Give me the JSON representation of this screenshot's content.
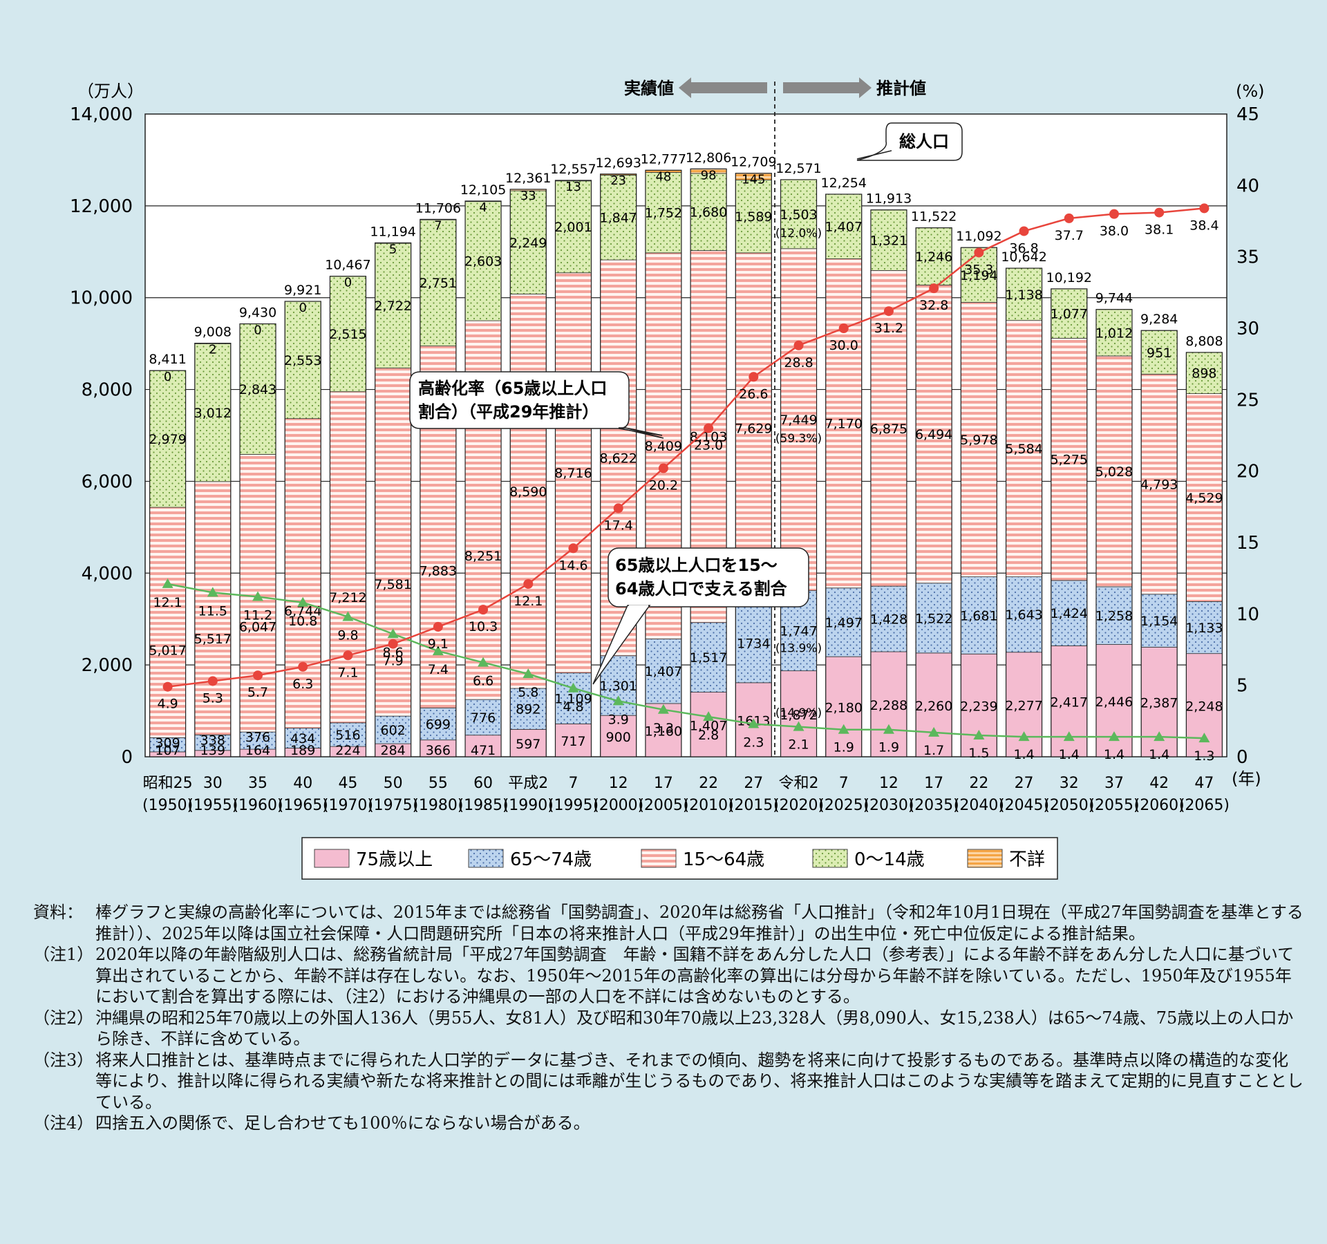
{
  "chart_data": {
    "type": "bar",
    "left_axis_unit": "（万人）",
    "right_axis_unit": "(%)",
    "x_unit": "(年)",
    "actual_label": "実績値",
    "projected_label": "推計値",
    "total_callout": "総人口",
    "aging_callout": "高齢化率（65歳以上人口割合）（平成29年推計）",
    "support_callout": "65歳以上人口を15～64歳人口で支える割合",
    "ylim_left": [
      0,
      14000
    ],
    "yticks_left": [
      "0",
      "2,000",
      "4,000",
      "6,000",
      "8,000",
      "10,000",
      "12,000",
      "14,000"
    ],
    "ylim_right": [
      0,
      45
    ],
    "yticks_right": [
      "0",
      "5",
      "10",
      "15",
      "20",
      "25",
      "30",
      "35",
      "40",
      "45"
    ],
    "categories": [
      "昭和25",
      "30",
      "35",
      "40",
      "45",
      "50",
      "55",
      "60",
      "平成2",
      "7",
      "12",
      "17",
      "22",
      "27",
      "令和2",
      "7",
      "12",
      "17",
      "22",
      "27",
      "32",
      "37",
      "42",
      "47"
    ],
    "years": [
      "(1950)",
      "(1955)",
      "(1960)",
      "(1965)",
      "(1970)",
      "(1975)",
      "(1980)",
      "(1985)",
      "(1990)",
      "(1995)",
      "(2000)",
      "(2005)",
      "(2010)",
      "(2015)",
      "(2020)",
      "(2025)",
      "(2030)",
      "(2035)",
      "(2040)",
      "(2045)",
      "(2050)",
      "(2055)",
      "(2060)",
      "(2065)"
    ],
    "series": [
      {
        "key": "s75",
        "name": "75歳以上",
        "color": "#f4bcd0",
        "values": [
          107,
          139,
          164,
          189,
          224,
          284,
          366,
          471,
          597,
          717,
          900,
          1160,
          1407,
          1613,
          1872,
          2180,
          2288,
          2260,
          2239,
          2277,
          2417,
          2446,
          2387,
          2248
        ],
        "labels": [
          "107",
          "139",
          "164",
          "189",
          "224",
          "284",
          "366",
          "471",
          "597",
          "717",
          "900",
          "1,160",
          "1,407",
          "1613",
          "1,872",
          "2,180",
          "2,288",
          "2,260",
          "2,239",
          "2,277",
          "2,417",
          "2,446",
          "2,387",
          "2,248"
        ]
      },
      {
        "key": "s65",
        "name": "65～74歳",
        "color": "#bcd4ee",
        "values": [
          309,
          338,
          376,
          434,
          516,
          602,
          699,
          776,
          892,
          1109,
          1301,
          1407,
          1517,
          1734,
          1747,
          1497,
          1428,
          1522,
          1681,
          1643,
          1424,
          1258,
          1154,
          1133
        ],
        "labels": [
          "309",
          "338",
          "376",
          "434",
          "516",
          "602",
          "699",
          "776",
          "892",
          "1,109",
          "1,301",
          "1,407",
          "1,517",
          "1734",
          "1,747",
          "1,497",
          "1,428",
          "1,522",
          "1,681",
          "1,643",
          "1,424",
          "1,258",
          "1,154",
          "1,133"
        ]
      },
      {
        "key": "s15",
        "name": "15～64歳",
        "color": "#f4a49c",
        "values": [
          5017,
          5517,
          6047,
          6744,
          7212,
          7581,
          7883,
          8251,
          8590,
          8716,
          8622,
          8409,
          8103,
          7629,
          7449,
          7170,
          6875,
          6494,
          5978,
          5584,
          5275,
          5028,
          4793,
          4529
        ],
        "labels": [
          "5,017",
          "5,517",
          "6,047",
          "6,744",
          "7,212",
          "7,581",
          "7,883",
          "8,251",
          "8,590",
          "8,716",
          "8,622",
          "8,409",
          "8,103",
          "7,629",
          "7,449",
          "7,170",
          "6,875",
          "6,494",
          "5,978",
          "5,584",
          "5,275",
          "5,028",
          "4,793",
          "4,529"
        ]
      },
      {
        "key": "s0",
        "name": "0～14歳",
        "color": "#dcedb4",
        "values": [
          2979,
          3012,
          2843,
          2553,
          2515,
          2722,
          2751,
          2603,
          2249,
          2001,
          1847,
          1752,
          1680,
          1589,
          1503,
          1407,
          1321,
          1246,
          1194,
          1138,
          1077,
          1012,
          951,
          898
        ],
        "labels": [
          "2,979",
          "3,012",
          "2,843",
          "2,553",
          "2,515",
          "2,722",
          "2,751",
          "2,603",
          "2,249",
          "2,001",
          "1,847",
          "1,752",
          "1,680",
          "1,589",
          "1,503",
          "1,407",
          "1,321",
          "1,246",
          "1,194",
          "1,138",
          "1,077",
          "1,012",
          "951",
          "898"
        ]
      },
      {
        "key": "unk",
        "name": "不詳",
        "color": "#fcd4a4",
        "values": [
          0,
          2,
          0,
          0,
          0,
          5,
          7,
          4,
          33,
          13,
          23,
          48,
          98,
          145,
          0,
          0,
          0,
          0,
          0,
          0,
          0,
          0,
          0,
          0
        ],
        "labels": [
          "0",
          "2",
          "0",
          "0",
          "0",
          "5",
          "7",
          "4",
          "33",
          "13",
          "23",
          "48",
          "98",
          "145",
          "",
          "",
          "",
          "",
          "",
          "",
          "",
          "",
          "",
          ""
        ]
      }
    ],
    "totals": [
      "8,411",
      "9,008",
      "9,430",
      "9,921",
      "10,467",
      "11,194",
      "11,706",
      "12,105",
      "12,361",
      "12,557",
      "12,693",
      "12,777",
      "12,806",
      "12,709",
      "12,571",
      "12,254",
      "11,913",
      "11,522",
      "11,092",
      "10,642",
      "10,192",
      "9,744",
      "9,284",
      "8,808"
    ],
    "pct_2020": {
      "s0": "(12.0%)",
      "s15": "(59.3%)",
      "s65": "(13.9%)",
      "s75": "(14.9%)"
    },
    "aging_rate": {
      "name": "高齢化率",
      "color": "#e8453c",
      "values": [
        4.9,
        5.3,
        5.7,
        6.3,
        7.1,
        7.9,
        9.1,
        10.3,
        12.1,
        14.6,
        17.4,
        20.2,
        23.0,
        26.6,
        28.8,
        30.0,
        31.2,
        32.8,
        35.3,
        36.8,
        37.7,
        38.0,
        38.1,
        38.4
      ],
      "labels": [
        "4.9",
        "5.3",
        "5.7",
        "6.3",
        "7.1",
        "7.9",
        "9.1",
        "10.3",
        "12.1",
        "14.6",
        "17.4",
        "20.2",
        "23.0",
        "26.6",
        "28.8",
        "30.0",
        "31.2",
        "32.8",
        "35.3",
        "36.8",
        "37.7",
        "38.0",
        "38.1",
        "38.4"
      ]
    },
    "support_ratio": {
      "name": "65歳以上人口を15～64歳人口で支える割合",
      "color": "#5cb85c",
      "values": [
        12.1,
        11.5,
        11.2,
        10.8,
        9.8,
        8.6,
        7.4,
        6.6,
        5.8,
        4.8,
        3.9,
        3.3,
        2.8,
        2.3,
        2.1,
        1.9,
        1.9,
        1.7,
        1.5,
        1.4,
        1.4,
        1.4,
        1.4,
        1.3
      ],
      "labels": [
        "12.1",
        "11.5",
        "11.2",
        "10.8",
        "9.8",
        "8.6",
        "7.4",
        "6.6",
        "5.8",
        "4.8",
        "3.9",
        "3.3",
        "2.8",
        "2.3",
        "2.1",
        "1.9",
        "1.9",
        "1.7",
        "1.5",
        "1.4",
        "1.4",
        "1.4",
        "1.4",
        "1.3"
      ]
    },
    "legend": [
      "75歳以上",
      "65～74歳",
      "15～64歳",
      "0～14歳",
      "不詳"
    ]
  },
  "notes": [
    {
      "label": "資料：",
      "text": "棒グラフと実線の高齢化率については、2015年までは総務省「国勢調査」、2020年は総務省「人口推計」（令和2年10月1日現在（平成27年国勢調査を基準とする推計））、2025年以降は国立社会保障・人口問題研究所「日本の将来推計人口（平成29年推計）」の出生中位・死亡中位仮定による推計結果。"
    },
    {
      "label": "（注1）",
      "text": "2020年以降の年齢階級別人口は、総務省統計局「平成27年国勢調査　年齢・国籍不詳をあん分した人口（参考表）」による年齢不詳をあん分した人口に基づいて算出されていることから、年齢不詳は存在しない。なお、1950年～2015年の高齢化率の算出には分母から年齢不詳を除いている。ただし、1950年及び1955年において割合を算出する際には、（注2）における沖縄県の一部の人口を不詳には含めないものとする。"
    },
    {
      "label": "（注2）",
      "text": "沖縄県の昭和25年70歳以上の外国人136人（男55人、女81人）及び昭和30年70歳以上23,328人（男8,090人、女15,238人）は65～74歳、75歳以上の人口から除き、不詳に含めている。"
    },
    {
      "label": "（注3）",
      "text": "将来人口推計とは、基準時点までに得られた人口学的データに基づき、それまでの傾向、趨勢を将来に向けて投影するものである。基準時点以降の構造的な変化等により、推計以降に得られる実績や新たな将来推計との間には乖離が生じうるものであり、将来推計人口はこのような実績等を踏まえて定期的に見直すこととしている。"
    },
    {
      "label": "（注4）",
      "text": "四捨五入の関係で、足し合わせても100％にならない場合がある。"
    }
  ]
}
